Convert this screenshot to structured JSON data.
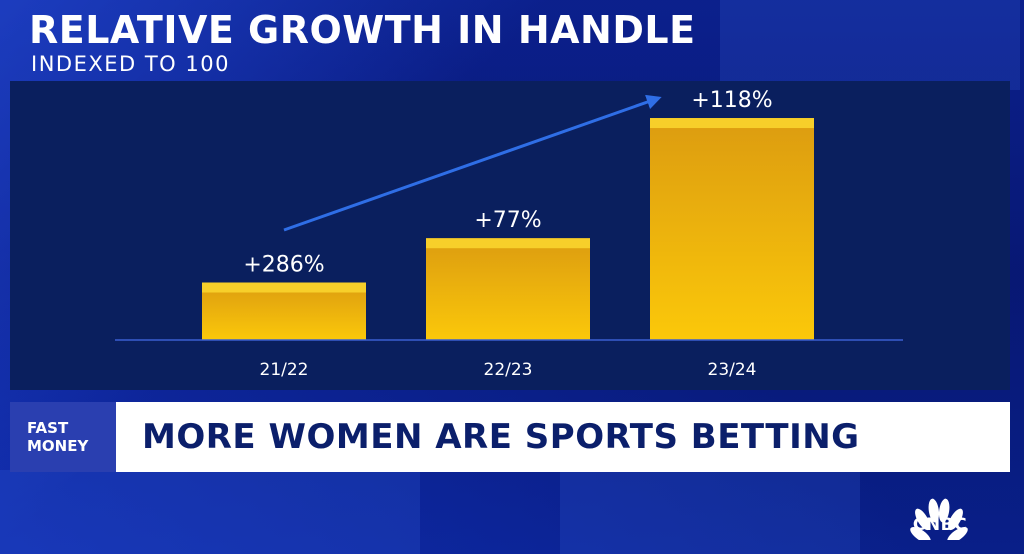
{
  "header": {
    "title": "RELATIVE GROWTH IN HANDLE",
    "subtitle": "INDEXED TO 100"
  },
  "colors": {
    "bar_top": "#f7cf2a",
    "bar_body": "#e6a814",
    "arrow": "#2f6ee6",
    "axis": "#3a5fd0",
    "panel": "#0a1f5e"
  },
  "chart_data": {
    "type": "bar",
    "categories": [
      "21/22",
      "22/23",
      "23/24"
    ],
    "values": [
      100,
      177,
      386
    ],
    "data_labels": [
      "+286%",
      "+77%",
      "+118%"
    ],
    "title": "RELATIVE GROWTH IN HANDLE",
    "subtitle": "INDEXED TO 100",
    "xlabel": "",
    "ylabel": "",
    "ylim": [
      0,
      400
    ],
    "grid": false,
    "legend": "none",
    "annotation": "trend-arrow"
  },
  "ticker": {
    "brand_line1": "FAST",
    "brand_line2": "MONEY",
    "headline": "MORE WOMEN ARE SPORTS BETTING"
  },
  "network": {
    "logo_icon": "peacock-icon",
    "name": "CNBC"
  }
}
